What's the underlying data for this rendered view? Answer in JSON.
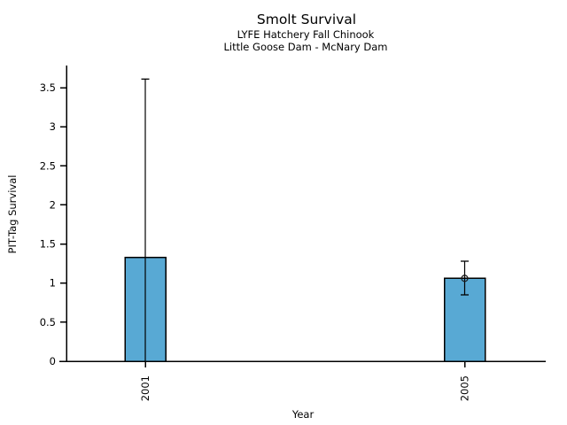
{
  "chart_data": {
    "type": "bar",
    "title": "Smolt Survival",
    "subtitle1": "LYFE Hatchery Fall Chinook",
    "subtitle2": "Little Goose Dam - McNary Dam",
    "xlabel": "Year",
    "ylabel": "PIT-Tag Survival",
    "categories": [
      "2001",
      "2005"
    ],
    "values": [
      1.33,
      1.06
    ],
    "error_bars": [
      {
        "upper": 3.61,
        "lower": 0,
        "lower_cap": false,
        "upper_cap": true
      },
      {
        "upper": 1.28,
        "lower": 0.85,
        "lower_cap": true,
        "upper_cap": true
      }
    ],
    "point_markers": [
      null,
      1.06
    ],
    "y_ticks": [
      0,
      0.5,
      1,
      1.5,
      2,
      2.5,
      3,
      3.5
    ],
    "y_tick_labels": [
      "0",
      "0.5",
      "1",
      "1.5",
      "2",
      "2.5",
      "3",
      "3.5"
    ],
    "ylim": [
      0,
      3.78
    ],
    "grid": false,
    "legend": null,
    "bar_color": "#58A9D4",
    "bar_border": "#000000",
    "axis_color": "#000000",
    "marker_color": "#1a1a1a",
    "background_color": "#ffffff"
  }
}
